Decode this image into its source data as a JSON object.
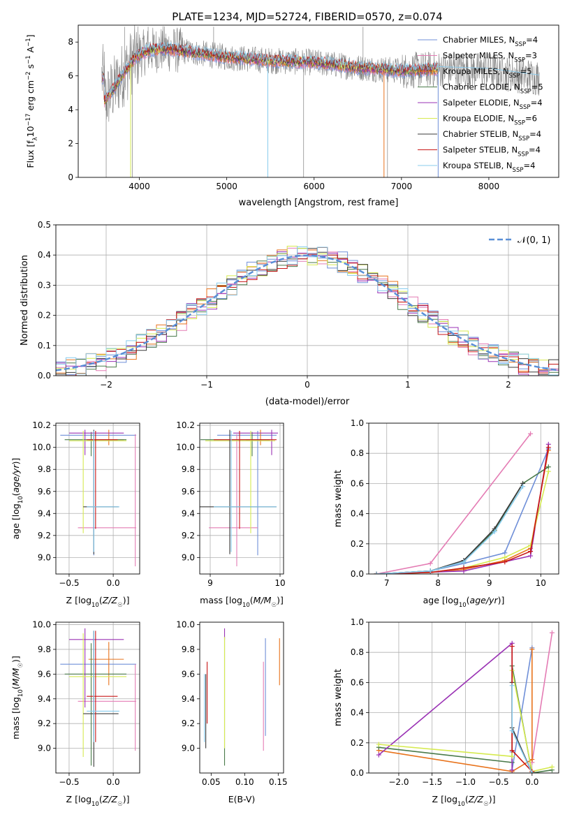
{
  "figure_title": "PLATE=1234, MJD=52724, FIBERID=0570, z=0.074",
  "models": [
    {
      "name": "Chabrier MILES",
      "nssp": "4",
      "color": "#6f8fd8"
    },
    {
      "name": "Salpeter MILES",
      "nssp": "3",
      "color": "#e47cb4"
    },
    {
      "name": "Kroupa MILES",
      "nssp": "5",
      "color": "#e8731c"
    },
    {
      "name": "Chabrier ELODIE",
      "nssp": "5",
      "color": "#4a7a4a"
    },
    {
      "name": "Salpeter ELODIE",
      "nssp": "4",
      "color": "#9a32b4"
    },
    {
      "name": "Kroupa ELODIE",
      "nssp": "6",
      "color": "#d6ea50"
    },
    {
      "name": "Chabrier STELIB",
      "nssp": "4",
      "color": "#3a3a3a"
    },
    {
      "name": "Salpeter STELIB",
      "nssp": "4",
      "color": "#c81818"
    },
    {
      "name": "Kroupa STELIB",
      "nssp": "4",
      "color": "#88ccee"
    }
  ],
  "chart_data": [
    {
      "id": "spectrum",
      "type": "line",
      "xlabel": "wavelength [Angstrom, rest frame]",
      "ylabel": "Flux [f_λ10^-17 erg cm^-2 s^-1 A^-1]",
      "xlim": [
        3300,
        8800
      ],
      "ylim": [
        0,
        9
      ],
      "xticks": [
        4000,
        5000,
        6000,
        7000,
        8000
      ],
      "yticks": [
        0,
        2,
        4,
        6,
        8
      ],
      "grid": false,
      "legend": "right",
      "data_color": "#808080",
      "data_x_range": [
        3570,
        8580
      ],
      "model_x_range": [
        3570,
        7420
      ],
      "continuum": [
        [
          3600,
          4.5
        ],
        [
          3700,
          5.2
        ],
        [
          3800,
          6.0
        ],
        [
          3950,
          7.1
        ],
        [
          4100,
          7.5
        ],
        [
          4300,
          7.6
        ],
        [
          4600,
          7.4
        ],
        [
          5000,
          7.1
        ],
        [
          5500,
          6.9
        ],
        [
          6000,
          6.8
        ],
        [
          6500,
          6.5
        ],
        [
          7000,
          6.3
        ],
        [
          7400,
          6.4
        ],
        [
          8000,
          6.3
        ],
        [
          8580,
          5.9
        ]
      ]
    },
    {
      "id": "residuals",
      "type": "histogram",
      "xlabel": "(data-model)/error",
      "ylabel": "Normed distribution",
      "xlim": [
        -2.5,
        2.5
      ],
      "ylim": [
        0,
        0.5
      ],
      "xticks": [
        -2,
        -1,
        0,
        1,
        2
      ],
      "yticks": [
        0.0,
        0.1,
        0.2,
        0.3,
        0.4,
        0.5
      ],
      "grid": true,
      "legend": "upper right",
      "gaussian_label": "N(0,1)",
      "gaussian_color": "#5a8fd6",
      "bin_width": 0.1
    },
    {
      "id": "z-age",
      "type": "scatter",
      "xlabel": "Z [log10(Z/Z☉)]",
      "ylabel": "age  [log10(age/yr)]",
      "xlim": [
        -0.65,
        0.3
      ],
      "ylim": [
        8.85,
        10.22
      ],
      "xticks": [
        -0.5,
        0.0
      ],
      "yticks": [
        9.0,
        9.2,
        9.4,
        9.6,
        9.8,
        10.0,
        10.2
      ],
      "grid": true
    },
    {
      "id": "mass-age",
      "type": "scatter",
      "xlabel": "mass [log10(M/M☉)]",
      "ylabel": "",
      "xlim": [
        8.85,
        10.05
      ],
      "ylim": [
        8.85,
        10.22
      ],
      "xticks": [
        9,
        10
      ],
      "yticks": [
        9.0,
        9.2,
        9.4,
        9.6,
        9.8,
        10.0,
        10.2
      ],
      "grid": true
    },
    {
      "id": "age-weight",
      "type": "line",
      "xlabel": "age  [log10(age/yr)]",
      "ylabel": "mass weight",
      "xlim": [
        6.65,
        10.35
      ],
      "ylim": [
        0,
        1
      ],
      "xticks": [
        7,
        8,
        9,
        10
      ],
      "yticks": [
        0.0,
        0.2,
        0.4,
        0.6,
        0.8,
        1.0
      ],
      "grid": true,
      "series": [
        {
          "name": "Chabrier MILES",
          "x": [
            6.8,
            7.85,
            8.5,
            9.3,
            10.15
          ],
          "y": [
            0.0,
            0.02,
            0.07,
            0.14,
            0.83
          ]
        },
        {
          "name": "Salpeter MILES",
          "x": [
            6.8,
            7.85,
            9.8
          ],
          "y": [
            0.0,
            0.07,
            0.93
          ]
        },
        {
          "name": "Kroupa MILES",
          "x": [
            6.8,
            7.85,
            8.5,
            9.3,
            9.8,
            10.15
          ],
          "y": [
            0.0,
            0.01,
            0.03,
            0.09,
            0.17,
            0.82
          ]
        },
        {
          "name": "Chabrier ELODIE",
          "x": [
            6.8,
            7.85,
            8.5,
            9.1,
            9.65,
            10.15
          ],
          "y": [
            0.0,
            0.02,
            0.08,
            0.29,
            0.6,
            0.71
          ]
        },
        {
          "name": "Salpeter ELODIE",
          "x": [
            6.8,
            8.5,
            9.8,
            10.15
          ],
          "y": [
            0.0,
            0.02,
            0.12,
            0.86
          ]
        },
        {
          "name": "Kroupa ELODIE",
          "x": [
            6.8,
            7.85,
            8.5,
            9.3,
            9.8,
            10.15
          ],
          "y": [
            0.0,
            0.01,
            0.04,
            0.11,
            0.19,
            0.68
          ]
        },
        {
          "name": "Chabrier STELIB",
          "x": [
            6.8,
            7.85,
            8.5,
            9.1,
            9.65
          ],
          "y": [
            0.0,
            0.02,
            0.09,
            0.3,
            0.6
          ]
        },
        {
          "name": "Salpeter STELIB",
          "x": [
            6.8,
            7.85,
            8.5,
            9.3,
            9.8,
            10.15
          ],
          "y": [
            0.0,
            0.01,
            0.04,
            0.08,
            0.15,
            0.84
          ]
        },
        {
          "name": "Kroupa STELIB",
          "x": [
            6.8,
            7.85,
            8.5,
            9.1,
            9.65
          ],
          "y": [
            0.0,
            0.02,
            0.08,
            0.28,
            0.58
          ]
        }
      ]
    },
    {
      "id": "z-mass",
      "type": "scatter",
      "xlabel": "Z [log10(Z/Z☉)]",
      "ylabel": "mass [log10(M/M☉)]",
      "xlim": [
        -0.65,
        0.3
      ],
      "ylim": [
        8.8,
        10.02
      ],
      "xticks": [
        -0.5,
        0.0
      ],
      "yticks": [
        9.0,
        9.2,
        9.4,
        9.6,
        9.8,
        10.0
      ],
      "grid": true
    },
    {
      "id": "ebv-mass",
      "type": "scatter",
      "xlabel": "E(B-V)",
      "ylabel": "",
      "xlim": [
        0.033,
        0.158
      ],
      "ylim": [
        8.8,
        10.02
      ],
      "xticks": [
        0.05,
        0.1,
        0.15
      ],
      "yticks": [
        9.0,
        9.2,
        9.4,
        9.6,
        9.8,
        10.0
      ],
      "grid": false
    },
    {
      "id": "z-weight",
      "type": "line",
      "xlabel": "Z [log10(Z/Z☉)]",
      "ylabel": "mass weight",
      "xlim": [
        -2.45,
        0.4
      ],
      "ylim": [
        0,
        1
      ],
      "xticks": [
        -2.0,
        -1.5,
        -1.0,
        -0.5,
        0.0
      ],
      "yticks": [
        0.0,
        0.2,
        0.4,
        0.6,
        0.8,
        1.0
      ],
      "grid": true,
      "series": [
        {
          "name": "Chabrier MILES",
          "x": [
            -0.3,
            -0.3,
            0.0
          ],
          "y": [
            0.14,
            0.02,
            0.83
          ]
        },
        {
          "name": "Salpeter MILES",
          "x": [
            0.0,
            0.3
          ],
          "y": [
            0.07,
            0.93
          ]
        },
        {
          "name": "Kroupa MILES",
          "x": [
            -2.3,
            -0.3,
            0.0,
            0.0
          ],
          "y": [
            0.15,
            0.01,
            0.09,
            0.82
          ]
        },
        {
          "name": "Chabrier ELODIE",
          "x": [
            -2.3,
            -0.3,
            -0.3,
            0.0,
            0.3
          ],
          "y": [
            0.17,
            0.07,
            0.71,
            0.0,
            0.02
          ]
        },
        {
          "name": "Salpeter ELODIE",
          "x": [
            -2.3,
            -0.3,
            -0.3
          ],
          "y": [
            0.12,
            0.86,
            0.02
          ]
        },
        {
          "name": "Kroupa ELODIE",
          "x": [
            -2.3,
            -0.3,
            -0.3,
            0.0,
            0.3
          ],
          "y": [
            0.19,
            0.11,
            0.68,
            0.01,
            0.04
          ]
        },
        {
          "name": "Chabrier STELIB",
          "x": [
            -0.3,
            -0.3,
            0.0
          ],
          "y": [
            0.6,
            0.3,
            0.0
          ]
        },
        {
          "name": "Salpeter STELIB",
          "x": [
            -0.3,
            -0.3,
            0.0
          ],
          "y": [
            0.84,
            0.15,
            0.01
          ]
        },
        {
          "name": "Kroupa STELIB",
          "x": [
            -0.3,
            -0.3,
            0.0
          ],
          "y": [
            0.58,
            0.28,
            0.0
          ]
        }
      ]
    }
  ],
  "parameters": [
    {
      "model": "Chabrier MILES",
      "Z": -0.22,
      "Zerr": [
        -0.6,
        0.26
      ],
      "age": 10.11,
      "ageerr": [
        9.02,
        10.15
      ],
      "mass": 9.68,
      "masserr": [
        9.1,
        9.95
      ],
      "ebv": 0.131,
      "ebverr": [
        9.1,
        9.89
      ]
    },
    {
      "model": "Salpeter MILES",
      "Z": 0.25,
      "Zerr": [
        -0.4,
        0.26
      ],
      "age": 9.27,
      "ageerr": [
        8.92,
        10.12
      ],
      "mass": 9.38,
      "masserr": [
        8.98,
        9.68
      ],
      "ebv": 0.128,
      "ebverr": [
        8.98,
        9.7
      ]
    },
    {
      "model": "Kroupa MILES",
      "Z": -0.05,
      "Zerr": [
        -0.28,
        0.12
      ],
      "age": 10.07,
      "ageerr": [
        10.02,
        10.16
      ],
      "mass": 9.72,
      "masserr": [
        9.51,
        9.86
      ],
      "ebv": 0.152,
      "ebverr": [
        9.51,
        9.89
      ]
    },
    {
      "model": "Chabrier ELODIE",
      "Z": -0.25,
      "Zerr": [
        -0.55,
        0.15
      ],
      "age": 10.07,
      "ageerr": [
        9.92,
        10.14
      ],
      "mass": 9.6,
      "masserr": [
        8.86,
        9.85
      ],
      "ebv": 0.07,
      "ebverr": [
        8.86,
        9.9
      ]
    },
    {
      "model": "Salpeter ELODIE",
      "Z": -0.32,
      "Zerr": [
        -0.5,
        0.12
      ],
      "age": 10.13,
      "ageerr": [
        9.93,
        10.16
      ],
      "mass": 9.88,
      "masserr": [
        9.33,
        9.97
      ],
      "ebv": 0.07,
      "ebverr": [
        9.88,
        9.97
      ]
    },
    {
      "model": "Kroupa ELODIE",
      "Z": -0.34,
      "Zerr": [
        -0.5,
        0.15
      ],
      "age": 10.06,
      "ageerr": [
        9.22,
        10.15
      ],
      "mass": 9.58,
      "masserr": [
        8.93,
        9.93
      ],
      "ebv": 0.07,
      "ebverr": [
        9.0,
        9.9
      ]
    },
    {
      "model": "Chabrier STELIB",
      "Z": -0.22,
      "Zerr": [
        -0.34,
        0.06
      ],
      "age": 9.46,
      "ageerr": [
        9.03,
        10.16
      ],
      "mass": 9.28,
      "masserr": [
        8.85,
        9.95
      ],
      "ebv": 0.042,
      "ebverr": [
        9.0,
        9.6
      ]
    },
    {
      "model": "Salpeter STELIB",
      "Z": -0.2,
      "Zerr": [
        -0.3,
        0.05
      ],
      "age": 10.07,
      "ageerr": [
        9.26,
        10.15
      ],
      "mass": 9.42,
      "masserr": [
        9.05,
        9.95
      ],
      "ebv": 0.044,
      "ebverr": [
        9.2,
        9.7
      ]
    },
    {
      "model": "Kroupa STELIB",
      "Z": -0.22,
      "Zerr": [
        -0.3,
        0.07
      ],
      "age": 9.46,
      "ageerr": [
        9.05,
        10.15
      ],
      "mass": 9.3,
      "masserr": [
        9.05,
        9.95
      ],
      "ebv": 0.04,
      "ebverr": [
        9.05,
        9.6
      ]
    }
  ]
}
